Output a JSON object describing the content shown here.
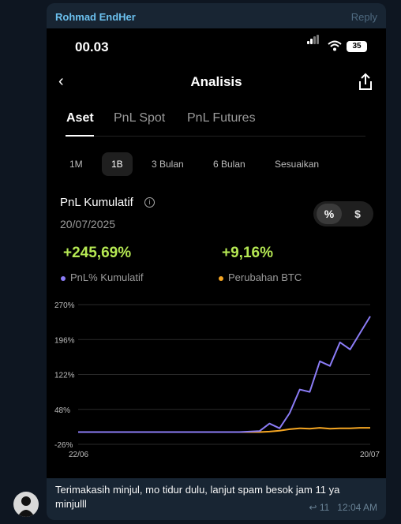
{
  "message": {
    "sender": "Rohmad EndHer",
    "reply": "Reply",
    "text": "Terimakasih minjul, mo tidur dulu, lanjut spam besok jam 11 ya minjulll",
    "views": "11",
    "time": "12:04 AM"
  },
  "phone": {
    "time": "00.03",
    "battery": "35",
    "title": "Analisis",
    "tabs": [
      "Aset",
      "PnL Spot",
      "PnL Futures"
    ],
    "periods": [
      "1M",
      "1B",
      "3 Bulan",
      "6 Bulan",
      "Sesuaikan"
    ],
    "pnl_title": "PnL Kumulatif",
    "date": "20/07/2025",
    "toggle": [
      "%",
      "$"
    ],
    "pnl_value": "+245,69%",
    "btc_value": "+9,16%",
    "legend": [
      "PnL% Kumulatif",
      "Perubahan BTC"
    ]
  },
  "chart_data": {
    "type": "line",
    "x_labels": [
      "22/06",
      "20/07"
    ],
    "y_ticks": [
      "270%",
      "196%",
      "122%",
      "48%",
      "-26%"
    ],
    "ylim": [
      -26,
      270
    ],
    "x": [
      0,
      2,
      4,
      6,
      8,
      10,
      12,
      14,
      16,
      18,
      19,
      20,
      21,
      22,
      23,
      24,
      25,
      26,
      27,
      28,
      29
    ],
    "series": [
      {
        "name": "PnL% Kumulatif",
        "color": "#8b7cf6",
        "values": [
          0,
          0,
          0,
          0,
          0,
          0,
          0,
          0,
          0,
          2,
          18,
          8,
          40,
          90,
          85,
          150,
          140,
          190,
          175,
          210,
          245
        ]
      },
      {
        "name": "Perubahan BTC",
        "color": "#f5a623",
        "values": [
          0,
          0,
          0,
          0,
          0,
          0,
          0,
          0,
          0,
          0,
          1,
          3,
          6,
          8,
          7,
          9,
          7,
          8,
          8,
          9,
          9
        ]
      }
    ]
  }
}
